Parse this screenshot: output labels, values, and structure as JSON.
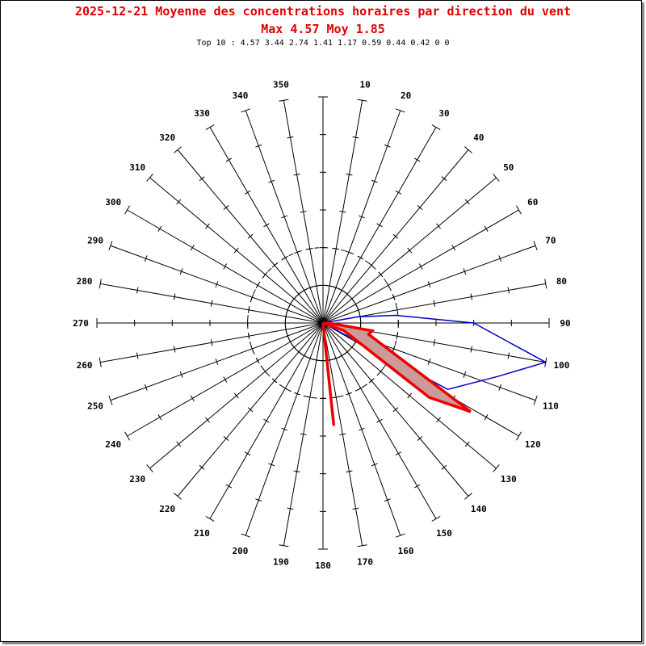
{
  "header": {
    "title_line1": "2025-12-21 Moyenne des concentrations horaires par direction du vent",
    "title_line2": "Max 4.57 Moy 1.85",
    "top10_label": "Top 10 : ",
    "top10_values": "4.57 3.44 2.74 1.41 1.17 0.59 0.44 0.42 0 0"
  },
  "chart_data": {
    "type": "polar-radar",
    "title": "2025-12-21 Moyenne des concentrations horaires par direction du vent",
    "subtitle": "Max 4.57 Moy 1.85",
    "directions": [
      "10",
      "20",
      "30",
      "40",
      "50",
      "60",
      "70",
      "80",
      "90",
      "100",
      "110",
      "120",
      "130",
      "140",
      "150",
      "160",
      "170",
      "180",
      "190",
      "200",
      "210",
      "220",
      "230",
      "240",
      "250",
      "260",
      "270",
      "280",
      "290",
      "300",
      "310",
      "320",
      "330",
      "340",
      "350"
    ],
    "max": 4.57,
    "mean": 1.85,
    "rlim": [
      0,
      6
    ],
    "colors": {
      "frequency": "#0000cc",
      "concentration": "#ee0000",
      "fill": "#cd9a9a"
    },
    "series": [
      {
        "points": [
          {
            "dir": 80,
            "value": 0.95
          },
          {
            "dir": 84,
            "value": 1.95
          },
          {
            "dir": 90,
            "value": 4.0
          },
          {
            "dir": 100,
            "value": 6.0
          },
          {
            "dir": 107,
            "value": 4.85
          },
          {
            "dir": 118,
            "value": 3.75
          },
          {
            "dir": 0,
            "value": 0.0
          }
        ]
      },
      {
        "points": [
          {
            "dir": 95,
            "value": 0.3
          },
          {
            "dir": 99,
            "value": 1.32
          },
          {
            "dir": 104,
            "value": 1.25
          },
          {
            "dir": 121,
            "value": 4.57
          },
          {
            "dir": 125,
            "value": 3.44
          },
          {
            "dir": 110,
            "value": 0.59
          },
          {
            "dir": 0,
            "value": 0.0
          }
        ]
      },
      {
        "points": [
          {
            "dir": 180,
            "value": 0.0
          },
          {
            "dir": 174,
            "value": 2.74
          }
        ]
      }
    ]
  }
}
